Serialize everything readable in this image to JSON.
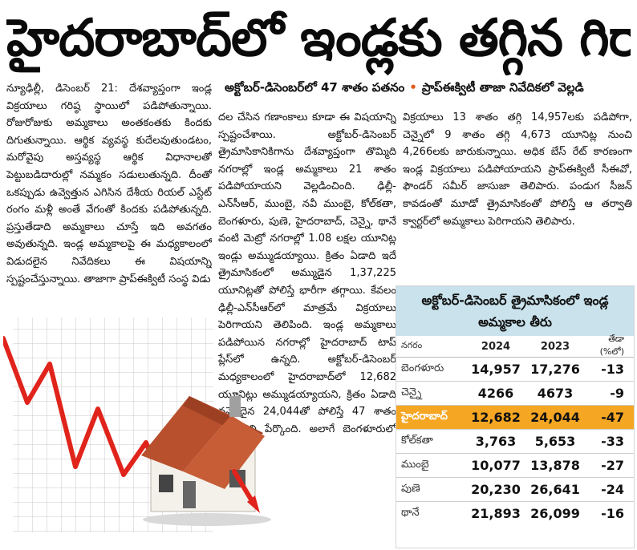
{
  "headline": "హైదరాబాద్‌లో ఇండ్లకు తగ్గిన గిరాకీ",
  "subhead": {
    "part1": "అక్టోబర్‌-డిసెంబర్‌లో 47 శాతం పతనం",
    "separator": "•",
    "part2": "ప్రాప్‌ఈక్విటీ తాజా నివేదికలో వెల్లడి"
  },
  "article": {
    "col1": "న్యూఢిల్లీ, డిసెంబర్‌ 21: దేశవ్యాప్తంగా ఇండ్ల విక్రయాలు గరిష్ఠ స్థాయిలో పడిపోతున్నాయి. రోజురోజుకు అమ్మకాలు అంతకంతకు కిందకు దిగుతున్నాయి. ఆర్థిక వ్యవస్థ కుదేలవుతుండటం, మరోవైపు అస్తవ్యస్థ ఆర్థిక విధానాలతో పెట్టుబడిదారుల్లో నమ్మకం సడులుతున్నది. దీంతో ఒకప్పుడు ఉవ్వెత్తున ఎగిసిన దేశీయ రియల్‌ ఎస్టేట్‌ రంగం మళ్లీ అంతే వేగంతో కిందకు పడిపోతున్నది. ప్రస్తుతేడాది అమ్మకాలు చూస్తే ఇది అవగతం అవుతున్నది. ఇండ్ల అమ్మకాలపై ఈ మధ్యకాలంలో విడుదలైన నివేదికలు ఈ విషయాన్ని స్పష్టంచేస్తున్నాయి. తాజాగా ప్రాప్‌ఈక్విటీ సంస్థ విడు",
    "col2": "దల చేసిన గణాంకాలు కూడా ఈ విషయాన్ని స్పష్టంచేశాయి. అక్టోబర్‌-డిసెంబర్‌ త్రైమాసికానికిగాను దేశవ్యాప్తంగా తొమ్మిది నగరాల్లో ఇండ్ల అమ్మకాలు 21 శాతం పడిపోయాయని వెల్లడించింది. ఢిల్లీ-ఎన్‌సీఆర్‌, ముంబై, నవీ ముంబై, కోల్‌కతా, బెంగళూరు, పుణె, హైదరాబాద్‌, చెన్నై, థానే వంటి మెట్రో నగరాల్లో 1.08 లక్షల యూనిట్ల ఇండ్లు అమ్ముడయ్యాయి. క్రితం ఏడాది ఇదే త్రైమాసికంలో అమ్ముడైన 1,37,225 యూనిట్లతో పోలిస్తే భారీగా తగ్గాయి. కేవలం ఢిల్లీ-ఎన్‌సీఆర్‌లో మాత్రమే విక్రయాలు పెరిగాయని తెలిపింది. ఇండ్ల అమ్మకాలు పడిపోయిన నగరాల్లో హైదరాబాద్‌ టాప్‌ ప్లేస్‌లో ఉన్నది. అక్టోబర్‌-డిసెంబర్‌ మధ్యకాలంలో హైదరాబాద్‌లో 12,682 యూనిట్లు అమ్ముడయ్యాయని, క్రితం ఏడాది నమోదైన 24,044తో పోలిస్తే 47 శాతం తగ్గాయని పేర్కొంది. అలాగే బెంగళూరులో గృహ",
    "col3": "విక్రయాలు 13 శాతం తగ్గి 14,957లకు పడిపోగా, చెన్నైలో 9 శాతం తగ్గి 4,673 యూనిట్ల నుంచి 4,266లకు జారుకున్నాయి. అధిక బేస్‌ రేట్‌ కారణంగా ఇండ్ల విక్రయాలు పడిపోయాయని ప్రాప్‌ఈక్విటీ సీఈవో, ఫౌండర్‌ సమీర్‌ జాసుజా తెలిపారు. పండుగ సీజన్‌ కావడంతో మూడో త్రైమాసికంతో పోలిస్తే ఆ తర్వాతి క్వార్టర్‌లో అమ్మకాలు పెరిగాయని తెలిపారు."
  },
  "table": {
    "title": "అక్టోబర్‌-డిసెంబర్‌ త్రైమాసికంలో ఇండ్ల అమ్మకాల తీరు",
    "headers": {
      "city": "నగరం",
      "y2024": "2024",
      "y2023": "2023",
      "diff": "తేడా (%లో)"
    },
    "rows": [
      {
        "city": "బెంగళూరు",
        "y2024": "14,957",
        "y2023": "17,276",
        "diff": "-13"
      },
      {
        "city": "చెన్నై",
        "y2024": "4266",
        "y2023": "4673",
        "diff": "-9"
      },
      {
        "city": "హైదరాబాద్‌",
        "y2024": "12,682",
        "y2023": "24,044",
        "diff": "-47"
      },
      {
        "city": "కోల్‌కతా",
        "y2024": "3,763",
        "y2023": "5,653",
        "diff": "-33"
      },
      {
        "city": "ముంబై",
        "y2024": "10,077",
        "y2023": "13,878",
        "diff": "-27"
      },
      {
        "city": "పుణె",
        "y2024": "20,230",
        "y2023": "26,641",
        "diff": "-24"
      },
      {
        "city": "థానే",
        "y2024": "21,893",
        "y2023": "26,099",
        "diff": "-16"
      }
    ]
  },
  "colors": {
    "highlight_row": "#f5a623",
    "table_title_bg": "#c9e2ec",
    "trend_line": "#e0241b",
    "roof": "#b8502e"
  }
}
